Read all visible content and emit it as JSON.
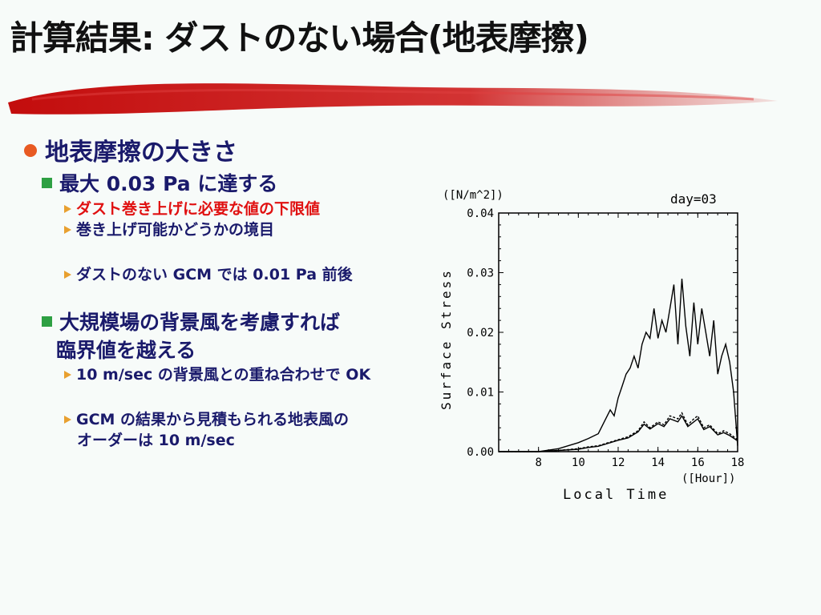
{
  "title": "計算結果: ダストのない場合(地表摩擦)",
  "bullet1": "地表摩擦の大きさ",
  "sub1": "最大 0.03 Pa に達する",
  "sub1_items": [
    "ダスト巻き上げに必要な値の下限値",
    "巻き上げ可能かどうかの境目"
  ],
  "sub1_item3": "ダストのない GCM では 0.01 Pa 前後",
  "sub2_line1": "大規模場の背景風を考慮すれば",
  "sub2_line2": "臨界値を越える",
  "sub2_item1": "10 m/sec の背景風との重ね合わせで OK",
  "sub2_item2_line1": "GCM の結果から見積もられる地表風の",
  "sub2_item2_line2": "オーダーは 10 m/sec",
  "colors": {
    "accent_red": "#e01010",
    "text": "#1a1a6b",
    "bullet_dot": "#e85a22",
    "bullet_sq": "#2ea043",
    "bullet_tri": "#e8a030"
  },
  "chart_data": {
    "type": "line",
    "unit_label": "([N/m^2])",
    "day_label": "day=03",
    "ylabel": "Surface Stress",
    "xlabel": "Local Time",
    "xunit_label": "([Hour])",
    "xlim": [
      6,
      18
    ],
    "ylim": [
      0,
      0.04
    ],
    "xticks": [
      "8",
      "10",
      "12",
      "14",
      "16",
      "18"
    ],
    "yticks": [
      "0.00",
      "0.01",
      "0.02",
      "0.03",
      "0.04"
    ],
    "series": [
      {
        "style": "solid",
        "x": [
          6.0,
          7.0,
          8.0,
          9.0,
          9.5,
          10.0,
          10.5,
          11.0,
          11.3,
          11.6,
          11.8,
          12.0,
          12.2,
          12.4,
          12.6,
          12.8,
          13.0,
          13.2,
          13.4,
          13.6,
          13.8,
          14.0,
          14.2,
          14.4,
          14.6,
          14.8,
          15.0,
          15.2,
          15.4,
          15.6,
          15.8,
          16.0,
          16.2,
          16.4,
          16.6,
          16.8,
          17.0,
          17.2,
          17.4,
          17.6,
          17.8,
          18.0
        ],
        "y": [
          0.0,
          0.0,
          0.0,
          0.0005,
          0.001,
          0.0015,
          0.0022,
          0.003,
          0.005,
          0.007,
          0.006,
          0.009,
          0.011,
          0.013,
          0.014,
          0.016,
          0.014,
          0.018,
          0.02,
          0.019,
          0.024,
          0.019,
          0.022,
          0.02,
          0.024,
          0.028,
          0.018,
          0.029,
          0.021,
          0.016,
          0.025,
          0.018,
          0.024,
          0.02,
          0.016,
          0.022,
          0.013,
          0.016,
          0.018,
          0.015,
          0.01,
          0.001
        ]
      },
      {
        "style": "dashed",
        "x": [
          6.0,
          7.0,
          8.0,
          9.0,
          10.0,
          10.5,
          11.0,
          11.5,
          12.0,
          12.5,
          13.0,
          13.3,
          13.6,
          14.0,
          14.3,
          14.6,
          15.0,
          15.2,
          15.5,
          15.8,
          16.0,
          16.3,
          16.6,
          17.0,
          17.3,
          17.6,
          18.0
        ],
        "y": [
          0.0,
          0.0,
          0.0,
          0.0002,
          0.0005,
          0.0008,
          0.001,
          0.0015,
          0.002,
          0.0025,
          0.0035,
          0.005,
          0.004,
          0.005,
          0.0045,
          0.006,
          0.0055,
          0.0065,
          0.0045,
          0.0055,
          0.006,
          0.004,
          0.0045,
          0.003,
          0.0035,
          0.003,
          0.002
        ]
      },
      {
        "style": "solid",
        "x": [
          6.0,
          7.0,
          8.0,
          9.0,
          10.0,
          10.5,
          11.0,
          11.5,
          12.0,
          12.5,
          13.0,
          13.3,
          13.6,
          14.0,
          14.3,
          14.6,
          15.0,
          15.2,
          15.5,
          15.8,
          16.0,
          16.3,
          16.6,
          17.0,
          17.3,
          17.6,
          18.0
        ],
        "y": [
          0.0,
          0.0,
          0.0,
          0.0002,
          0.0004,
          0.0007,
          0.0009,
          0.0014,
          0.0019,
          0.0023,
          0.0033,
          0.0046,
          0.0038,
          0.0047,
          0.0042,
          0.0055,
          0.005,
          0.006,
          0.0042,
          0.005,
          0.0055,
          0.0037,
          0.0042,
          0.0028,
          0.0032,
          0.0027,
          0.0018
        ]
      }
    ]
  }
}
